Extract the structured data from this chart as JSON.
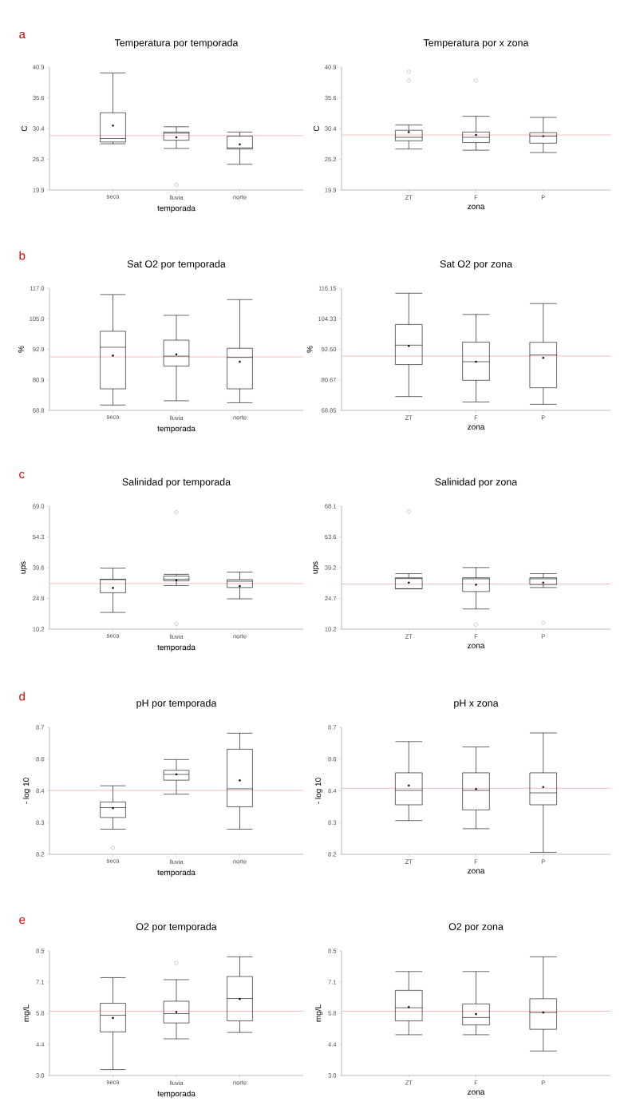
{
  "chart_data": [
    {
      "type": "box",
      "title": "Temperatura por temporada",
      "xlabel": "temporada",
      "ylabel": "C",
      "annotations": [
        "a"
      ],
      "categories": [
        "seca",
        "lluvia",
        "norte"
      ],
      "boxes": [
        {
          "low": 27.8,
          "q1": 28.1,
          "median": 28.7,
          "q3": 33.1,
          "high": 39.9,
          "mean": 30.9
        },
        {
          "low": 27.0,
          "q1": 28.4,
          "median": 29.6,
          "q3": 29.8,
          "high": 30.7,
          "mean": 28.9,
          "outliers": [
            20.8
          ]
        },
        {
          "low": 24.3,
          "q1": 26.9,
          "median": 27.1,
          "q3": 29.1,
          "high": 29.8,
          "mean": 27.7
        }
      ],
      "ylim": [
        19.9,
        40.9
      ],
      "yticks": [
        19.9,
        {
          "value": 25.15,
          "label": "25.2"
        },
        30.4,
        {
          "value": 35.65,
          "label": "35.6"
        },
        40.9
      ],
      "ref_lines": [
        {
          "axis": "y",
          "value": 29.2,
          "color": "#f4a0a0"
        }
      ]
    },
    {
      "type": "box",
      "title": "Temperatura por x zona",
      "xlabel": "zona",
      "ylabel": "C",
      "categories": [
        "ZT",
        "F",
        "P"
      ],
      "boxes": [
        {
          "low": 26.9,
          "q1": 28.3,
          "median": 28.9,
          "q3": 30.1,
          "high": 31.0,
          "mean": 29.8,
          "outliers": [
            40.1,
            38.6
          ]
        },
        {
          "low": 26.7,
          "q1": 28.0,
          "median": 28.9,
          "q3": 29.8,
          "high": 32.5,
          "mean": 29.3,
          "outliers": [
            38.6
          ]
        },
        {
          "low": 26.3,
          "q1": 27.9,
          "median": 29.1,
          "q3": 29.7,
          "high": 32.3,
          "mean": 29.1
        }
      ],
      "ylim": [
        19.9,
        40.9
      ],
      "yticks": [
        19.9,
        {
          "value": 25.15,
          "label": "25.2"
        },
        30.4,
        {
          "value": 35.65,
          "label": "35.6"
        },
        40.9
      ],
      "ref_lines": [
        {
          "axis": "y",
          "value": 29.3,
          "color": "#f4a0a0"
        }
      ]
    },
    {
      "type": "box",
      "title": "Sat O2 por temporada",
      "xlabel": "temporada",
      "ylabel": "%",
      "annotations": [
        "b"
      ],
      "categories": [
        "seca",
        "lluvia",
        "norte"
      ],
      "boxes": [
        {
          "low": 70.9,
          "q1": 77.3,
          "median": 93.7,
          "q3": 100.0,
          "high": 114.5,
          "mean": 90.4
        },
        {
          "low": 72.6,
          "q1": 86.3,
          "median": 90.2,
          "q3": 96.5,
          "high": 106.3,
          "mean": 90.9
        },
        {
          "low": 71.8,
          "q1": 77.3,
          "median": 89.7,
          "q3": 93.3,
          "high": 112.5,
          "mean": 88.0
        }
      ],
      "ylim": [
        68.8,
        117.0
      ],
      "yticks": [
        68.8,
        {
          "value": 80.85,
          "label": "80.9"
        },
        92.9,
        {
          "value": 104.95,
          "label": "105.0"
        },
        {
          "value": 117.0,
          "label": "117.0"
        }
      ],
      "ref_lines": [
        {
          "axis": "y",
          "value": 89.9,
          "color": "#f4a0a0"
        }
      ]
    },
    {
      "type": "box",
      "title": "Sat O2 por zona",
      "xlabel": "zona",
      "ylabel": "%",
      "categories": [
        "ZT",
        "F",
        "P"
      ],
      "boxes": [
        {
          "low": 74.2,
          "q1": 86.6,
          "median": 94.1,
          "q3": 102.1,
          "high": 114.2,
          "mean": 93.8
        },
        {
          "low": 72.1,
          "q1": 80.5,
          "median": 87.7,
          "q3": 95.3,
          "high": 106.0,
          "mean": 87.7
        },
        {
          "low": 71.2,
          "q1": 77.6,
          "median": 90.3,
          "q3": 95.2,
          "high": 110.2,
          "mean": 89.2
        }
      ],
      "ylim": [
        68.85,
        116.15
      ],
      "yticks": [
        68.85,
        {
          "value": 80.675,
          "label": "80.67"
        },
        {
          "value": 92.5,
          "label": "92.50"
        },
        {
          "value": 104.325,
          "label": "104.33"
        },
        116.15
      ],
      "ref_lines": [
        {
          "axis": "y",
          "value": 89.9,
          "color": "#f4a0a0"
        }
      ]
    },
    {
      "type": "box",
      "title": "Salinidad por temporada",
      "xlabel": "temporada",
      "ylabel": "ups",
      "annotations": [
        "c"
      ],
      "categories": [
        "seca",
        "lluvia",
        "norte"
      ],
      "boxes": [
        {
          "low": 18.2,
          "q1": 27.6,
          "median": 33.9,
          "q3": 34.1,
          "high": 39.4,
          "mean": 29.9
        },
        {
          "low": 31.0,
          "q1": 33.3,
          "median": 34.1,
          "q3": 35.6,
          "high": 36.4,
          "mean": 33.5,
          "outliers": [
            66.1,
            12.7
          ]
        },
        {
          "low": 24.7,
          "q1": 30.1,
          "median": 33.1,
          "q3": 33.9,
          "high": 37.5,
          "mean": 30.8
        }
      ],
      "ylim": [
        10.2,
        69.0
      ],
      "yticks": [
        10.2,
        24.9,
        39.6,
        54.3,
        {
          "value": 69.0,
          "label": "69.0"
        }
      ],
      "ref_lines": [
        {
          "axis": "y",
          "value": 32.0,
          "color": "#f4a0a0"
        }
      ]
    },
    {
      "type": "box",
      "title": "Salinidad por zona",
      "xlabel": "zona",
      "ylabel": "ups",
      "categories": [
        "ZT",
        "F",
        "P"
      ],
      "boxes": [
        {
          "low": 29.2,
          "q1": 29.2,
          "median": 34.0,
          "q3": 34.4,
          "high": 36.3,
          "mean": 32.1,
          "outliers": [
            65.6
          ]
        },
        {
          "low": 19.7,
          "q1": 27.9,
          "median": 33.9,
          "q3": 34.4,
          "high": 39.2,
          "mean": 31.1,
          "outliers": [
            12.3
          ]
        },
        {
          "low": 29.8,
          "q1": 31.2,
          "median": 33.9,
          "q3": 34.4,
          "high": 36.3,
          "mean": 32.1,
          "outliers": [
            13.1
          ]
        }
      ],
      "ylim": [
        10.2,
        68.1
      ],
      "yticks": [
        10.2,
        {
          "value": 24.675,
          "label": "24.7"
        },
        {
          "value": 39.15,
          "label": "39.2"
        },
        {
          "value": 53.625,
          "label": "53.6"
        },
        68.1
      ],
      "ref_lines": [
        {
          "axis": "y",
          "value": 31.5,
          "color": "#f4a0a0"
        }
      ]
    },
    {
      "type": "box",
      "title": "pH por temporada",
      "xlabel": "temporada",
      "ylabel": "- log 10",
      "annotations": [
        "d"
      ],
      "categories": [
        "seca",
        "lluvia",
        "norte"
      ],
      "boxes": [
        {
          "low": 8.299,
          "q1": 8.345,
          "median": 8.384,
          "q3": 8.406,
          "high": 8.47,
          "mean": 8.382,
          "outliers": [
            8.226
          ]
        },
        {
          "low": 8.437,
          "q1": 8.492,
          "median": 8.515,
          "q3": 8.531,
          "high": 8.573,
          "mean": 8.515
        },
        {
          "low": 8.299,
          "q1": 8.387,
          "median": 8.458,
          "q3": 8.614,
          "high": 8.677,
          "mean": 8.491
        }
      ],
      "ylim": [
        8.2,
        8.7
      ],
      "yticks": [
        8.2,
        {
          "value": 8.325,
          "label": "8.3"
        },
        {
          "value": 8.45,
          "label": "8.4"
        },
        {
          "value": 8.575,
          "label": "8.6"
        },
        8.7
      ],
      "ref_lines": [
        {
          "axis": "y",
          "value": 8.452,
          "color": "#f4a0a0"
        }
      ]
    },
    {
      "type": "box",
      "title": "pH x zona",
      "xlabel": "zona",
      "ylabel": "- log 10",
      "categories": [
        "ZT",
        "F",
        "P"
      ],
      "boxes": [
        {
          "low": 8.333,
          "q1": 8.395,
          "median": 8.452,
          "q3": 8.521,
          "high": 8.644,
          "mean": 8.471
        },
        {
          "low": 8.301,
          "q1": 8.375,
          "median": 8.452,
          "q3": 8.521,
          "high": 8.623,
          "mean": 8.457
        },
        {
          "low": 8.208,
          "q1": 8.395,
          "median": 8.442,
          "q3": 8.521,
          "high": 8.678,
          "mean": 8.465
        }
      ],
      "ylim": [
        8.2,
        8.7
      ],
      "yticks": [
        8.2,
        {
          "value": 8.325,
          "label": "8.3"
        },
        {
          "value": 8.45,
          "label": "8.4"
        },
        {
          "value": 8.575,
          "label": "8.6"
        },
        8.7
      ],
      "ref_lines": [
        {
          "axis": "y",
          "value": 8.46,
          "color": "#f4a0a0"
        }
      ]
    },
    {
      "type": "box",
      "title": "O2 por temporada",
      "xlabel": "temporada",
      "ylabel": "mg/L",
      "annotations": [
        "e"
      ],
      "categories": [
        "seca",
        "lluvia",
        "norte"
      ],
      "boxes": [
        {
          "low": 3.26,
          "q1": 4.92,
          "median": 5.66,
          "q3": 6.19,
          "high": 7.32,
          "mean": 5.54
        },
        {
          "low": 4.62,
          "q1": 5.32,
          "median": 5.73,
          "q3": 6.28,
          "high": 7.23,
          "mean": 5.8,
          "outliers": [
            7.97
          ]
        },
        {
          "low": 4.9,
          "q1": 5.41,
          "median": 6.4,
          "q3": 7.37,
          "high": 8.24,
          "mean": 6.38
        }
      ],
      "ylim": [
        3.0,
        8.5
      ],
      "yticks": [
        {
          "value": 3.0,
          "label": "3.0"
        },
        {
          "value": 4.375,
          "label": "4.4"
        },
        {
          "value": 5.75,
          "label": "5.8"
        },
        {
          "value": 7.125,
          "label": "7.1"
        },
        8.5
      ],
      "ref_lines": [
        {
          "axis": "y",
          "value": 5.84,
          "color": "#f4a0a0"
        }
      ]
    },
    {
      "type": "box",
      "title": "O2 por zona",
      "xlabel": "zona",
      "ylabel": "mg/L",
      "categories": [
        "ZT",
        "F",
        "P"
      ],
      "boxes": [
        {
          "low": 4.8,
          "q1": 5.41,
          "median": 5.99,
          "q3": 6.76,
          "high": 7.59,
          "mean": 6.02
        },
        {
          "low": 4.8,
          "q1": 5.23,
          "median": 5.56,
          "q3": 6.16,
          "high": 7.59,
          "mean": 5.71
        },
        {
          "low": 4.08,
          "q1": 5.04,
          "median": 5.78,
          "q3": 6.39,
          "high": 8.24,
          "mean": 5.78
        }
      ],
      "ylim": [
        3.0,
        8.5
      ],
      "yticks": [
        {
          "value": 3.0,
          "label": "3.0"
        },
        {
          "value": 4.375,
          "label": "4.4"
        },
        {
          "value": 5.75,
          "label": "5.8"
        },
        {
          "value": 7.125,
          "label": "7.1"
        },
        8.5
      ],
      "ref_lines": [
        {
          "axis": "y",
          "value": 5.84,
          "color": "#f4a0a0"
        }
      ]
    }
  ]
}
